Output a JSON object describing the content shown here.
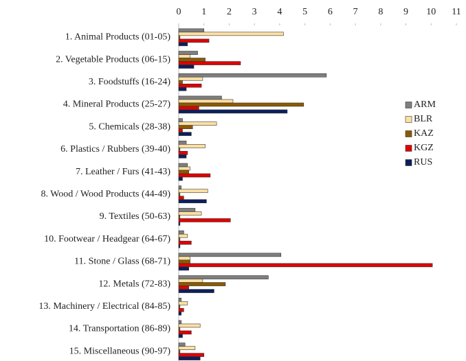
{
  "chart_data": {
    "type": "hbar",
    "categories": [
      "1. Animal Products (01-05)",
      "2. Vegetable Products (06-15)",
      "3. Foodstuffs (16-24)",
      "4. Mineral Products (25-27)",
      "5. Chemicals (28-38)",
      "6. Plastics / Rubbers (39-40)",
      "7. Leather / Furs (41-43)",
      "8. Wood / Wood Products (44-49)",
      "9. Textiles (50-63)",
      "10. Footwear / Headgear (64-67)",
      "11. Stone / Glass (68-71)",
      "12. Metals (72-83)",
      "13. Machinery / Electrical (84-85)",
      "14. Transportation (86-89)",
      "15. Miscellaneous (90-97)"
    ],
    "series": [
      {
        "name": "ARM",
        "color": "#7f7f7f",
        "values": [
          1.0,
          0.75,
          5.85,
          1.7,
          0.15,
          0.3,
          0.35,
          0.1,
          0.65,
          0.2,
          4.05,
          3.55,
          0.1,
          0.1,
          0.25
        ]
      },
      {
        "name": "BLR",
        "color": "#ffe0a3",
        "values": [
          4.15,
          0.45,
          0.95,
          2.15,
          1.5,
          1.05,
          0.45,
          1.15,
          0.9,
          0.35,
          0.45,
          0.95,
          0.35,
          0.85,
          0.65
        ]
      },
      {
        "name": "KAZ",
        "color": "#8b5a00",
        "values": [
          0.05,
          1.05,
          0.15,
          4.95,
          0.55,
          0.05,
          0.4,
          0.05,
          0.05,
          0.05,
          0.45,
          1.85,
          0.05,
          0.05,
          0.05
        ]
      },
      {
        "name": "KGZ",
        "color": "#e00000",
        "values": [
          1.2,
          2.45,
          0.9,
          0.8,
          0.15,
          0.35,
          1.25,
          0.2,
          2.05,
          0.5,
          10.05,
          0.4,
          0.2,
          0.5,
          1.0
        ]
      },
      {
        "name": "RUS",
        "color": "#0a1f5c",
        "values": [
          0.35,
          0.6,
          0.3,
          4.3,
          0.5,
          0.3,
          0.15,
          1.1,
          0.05,
          0.05,
          0.4,
          1.4,
          0.1,
          0.15,
          0.85
        ]
      }
    ],
    "xlim": [
      0,
      11
    ],
    "xticks": [
      0,
      1,
      2,
      3,
      4,
      5,
      6,
      7,
      8,
      9,
      10,
      11
    ],
    "legend": "right"
  }
}
